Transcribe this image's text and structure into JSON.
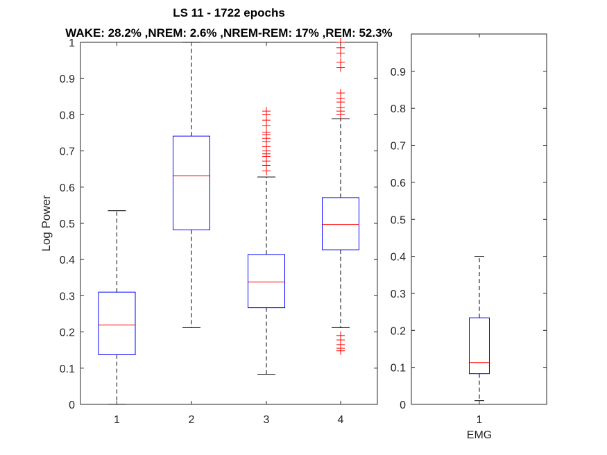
{
  "figure": {
    "title_line1": "LS 11 - 1722 epochs",
    "title_line2": "WAKE: 28.2% ,NREM: 2.6% ,NREM-REM: 17% ,REM: 52.3%"
  },
  "colors": {
    "box": "#0000ff",
    "median": "#ff0000",
    "whisker": "#000000",
    "outlier": "#ff0000",
    "axis": "#262626",
    "background": "#ffffff"
  },
  "chart_data": [
    {
      "type": "boxplot",
      "title": "",
      "xlabel": "",
      "ylabel": "Log Power",
      "ylim": [
        0,
        1
      ],
      "yticks": [
        "0",
        "0.1",
        "0.2",
        "0.3",
        "0.4",
        "0.5",
        "0.6",
        "0.7",
        "0.8",
        "0.9",
        "1"
      ],
      "categories": [
        "1",
        "2",
        "3",
        "4"
      ],
      "boxes": [
        {
          "category": "1",
          "whisker_low": 0.0,
          "q1": 0.137,
          "median": 0.219,
          "q3": 0.31,
          "whisker_high": 0.535,
          "outliers": []
        },
        {
          "category": "2",
          "whisker_low": 0.212,
          "q1": 0.482,
          "median": 0.631,
          "q3": 0.741,
          "whisker_high": 1.0,
          "outliers": []
        },
        {
          "category": "3",
          "whisker_low": 0.083,
          "q1": 0.267,
          "median": 0.338,
          "q3": 0.414,
          "whisker_high": 0.628,
          "outliers": [
            0.645,
            0.66,
            0.672,
            0.685,
            0.692,
            0.7,
            0.712,
            0.725,
            0.735,
            0.745,
            0.752,
            0.77,
            0.785,
            0.8,
            0.81
          ]
        },
        {
          "category": "4",
          "whisker_low": 0.212,
          "q1": 0.427,
          "median": 0.497,
          "q3": 0.571,
          "whisker_high": 0.789,
          "outliers": [
            0.148,
            0.155,
            0.165,
            0.178,
            0.19,
            0.8,
            0.81,
            0.82,
            0.835,
            0.845,
            0.86,
            0.93,
            0.945,
            0.97,
            0.985,
            1.0
          ]
        }
      ]
    },
    {
      "type": "boxplot",
      "title": "",
      "xlabel": "EMG",
      "ylabel": "",
      "ylim": [
        0,
        1
      ],
      "yticks": [
        "0",
        "0.1",
        "0.2",
        "0.3",
        "0.4",
        "0.5",
        "0.6",
        "0.7",
        "0.8",
        "0.9"
      ],
      "categories": [
        "1"
      ],
      "boxes": [
        {
          "category": "1",
          "whisker_low": 0.01,
          "q1": 0.083,
          "median": 0.113,
          "q3": 0.234,
          "whisker_high": 0.4,
          "outliers": []
        }
      ]
    }
  ]
}
